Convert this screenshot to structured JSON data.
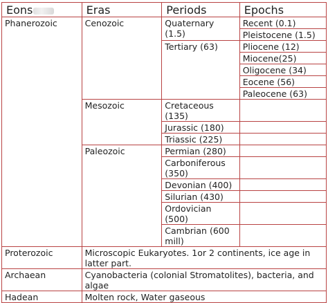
{
  "headers": {
    "eons": "Eons",
    "eras": "Eras",
    "periods": "Periods",
    "epochs": "Epochs"
  },
  "phanerozoic": {
    "eon": "Phanerozoic",
    "cenozoic": {
      "era": "Cenozoic",
      "quaternary": "Quaternary (1.5)",
      "tertiary": "Tertiary (63)",
      "epochs": [
        "Recent (0.1)",
        "Pleistocene (1.5)",
        "Pliocene (12)",
        "Miocene(25)",
        "Oligocene (34)",
        "Eocene (56)",
        "Paleocene (63)"
      ]
    },
    "mesozoic": {
      "era": "Mesozoic",
      "periods": [
        "Cretaceous (135)",
        "Jurassic (180)",
        "Triassic (225)"
      ]
    },
    "paleozoic": {
      "era": "Paleozoic",
      "periods": [
        "Permian (280)",
        "Carboniferous (350)",
        "Devonian (400)",
        "Silurian (430)",
        "Ordovician (500)",
        "Cambrian (600 mill)"
      ]
    }
  },
  "proterozoic": {
    "eon": "Proterozoic",
    "desc": "Microscopic Eukaryotes. 1or 2 continents, ice age in latter part."
  },
  "archaean": {
    "eon": "Archaean",
    "desc": "Cyanobacteria (colonial Stromatolites), bacteria, and algae"
  },
  "hadean": {
    "eon": "Hadean",
    "desc": "Molten rock, Water gaseous"
  },
  "colors": {
    "border": "#b84242",
    "text": "#222222"
  }
}
